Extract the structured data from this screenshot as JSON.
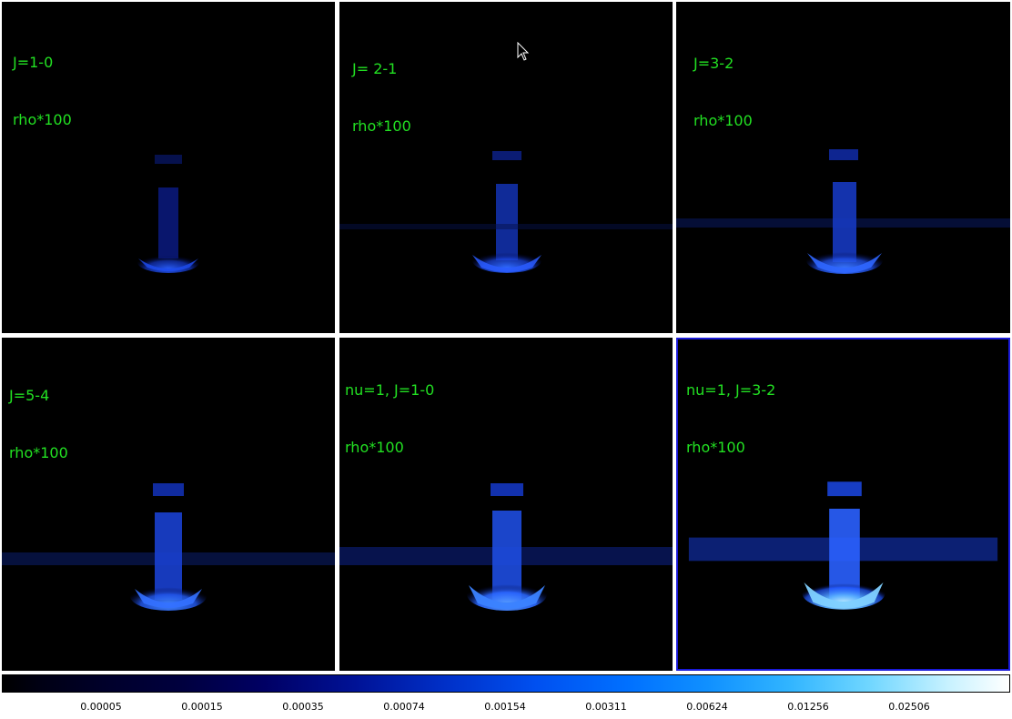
{
  "panels": [
    {
      "line1": "J=1-0",
      "line2": "rho*100"
    },
    {
      "line1": "J= 2-1",
      "line2": "rho*100"
    },
    {
      "line1": "J=3-2",
      "line2": "rho*100"
    },
    {
      "line1": "J=5-4",
      "line2": "rho*100"
    },
    {
      "line1": "nu=1, J=1-0",
      "line2": "rho*100"
    },
    {
      "line1": "nu=1, J=3-2",
      "line2": "rho*100"
    }
  ],
  "colorbar": {
    "ticks": [
      "0.00005",
      "0.00015",
      "0.00035",
      "0.00074",
      "0.00154",
      "0.00311",
      "0.00624",
      "0.01256",
      "0.02506"
    ]
  },
  "colors": {
    "label_text": "#22e022",
    "panel_background": "#000000",
    "selected_border": "#1a1ad8"
  }
}
